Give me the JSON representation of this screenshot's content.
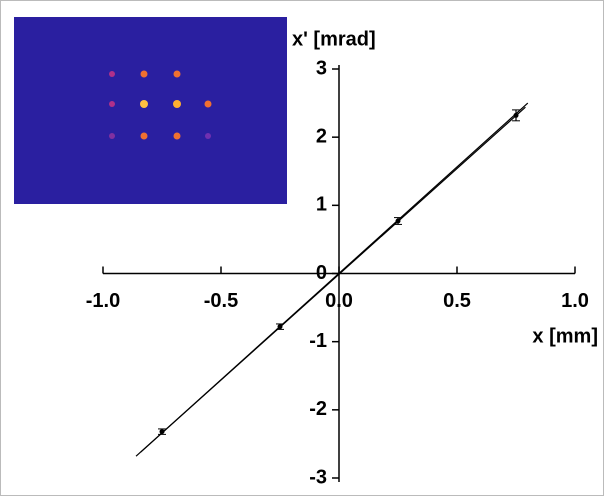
{
  "chart_data": {
    "type": "scatter",
    "x_label": "x [mm]",
    "y_label": "x' [mrad]",
    "x": [
      -0.75,
      -0.25,
      0.25,
      0.75
    ],
    "series": [
      {
        "color": "#000000",
        "values": [
          -2.32,
          -0.78,
          0.77,
          2.32
        ],
        "errors": [
          0.04,
          0.04,
          0.05,
          0.08
        ]
      }
    ],
    "lines": [
      {
        "color": "#000000",
        "x": [
          -0.84,
          0.8
        ],
        "y": [
          -2.62,
          2.5
        ]
      },
      {
        "color": "#000000",
        "x": [
          -0.86,
          0.79
        ],
        "y": [
          -2.68,
          2.44
        ]
      }
    ],
    "xlim": [
      -1,
      1
    ],
    "ylim": [
      -3,
      3
    ],
    "xticks": [
      {
        "value": -1,
        "label": "-1.0"
      },
      -0.5,
      {
        "value": 0,
        "label": "0.0"
      },
      0.5,
      {
        "value": 1,
        "label": "1.0"
      }
    ],
    "yticks": [
      -3,
      -2,
      -1,
      0,
      1,
      2,
      3
    ]
  }
}
